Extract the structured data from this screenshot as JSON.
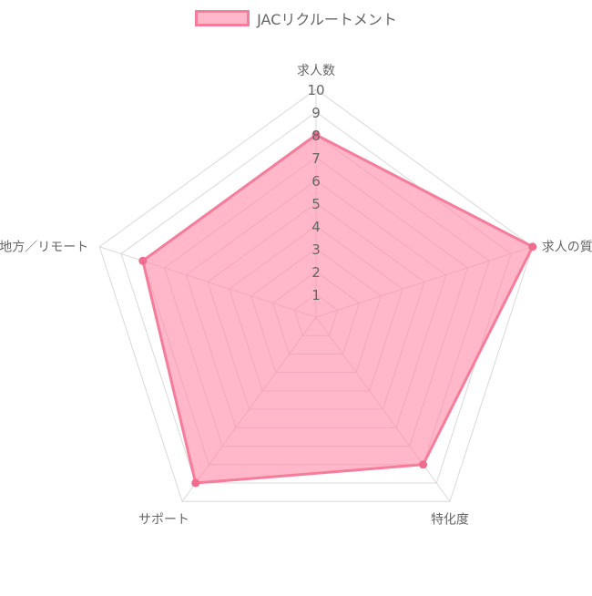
{
  "chart_data": {
    "type": "radar",
    "title": "",
    "legend": {
      "position": "top",
      "entries": [
        "JACリクルートメント"
      ]
    },
    "axes": [
      "求人数",
      "求人の質",
      "特化度",
      "サポート",
      "地方／リモート"
    ],
    "r_range": [
      0,
      10
    ],
    "r_ticks": [
      "1",
      "2",
      "3",
      "4",
      "5",
      "6",
      "7",
      "8",
      "9",
      "10"
    ],
    "grid": true,
    "series": [
      {
        "name": "JACリクルートメント",
        "values": [
          8,
          10,
          8,
          9,
          8
        ]
      }
    ]
  },
  "colors": {
    "fill": "rgba(255,135,165,0.6)",
    "stroke": "#f57c9b",
    "point": "#f06c8f",
    "grid": "#d9d9d9",
    "text": "#666666"
  }
}
